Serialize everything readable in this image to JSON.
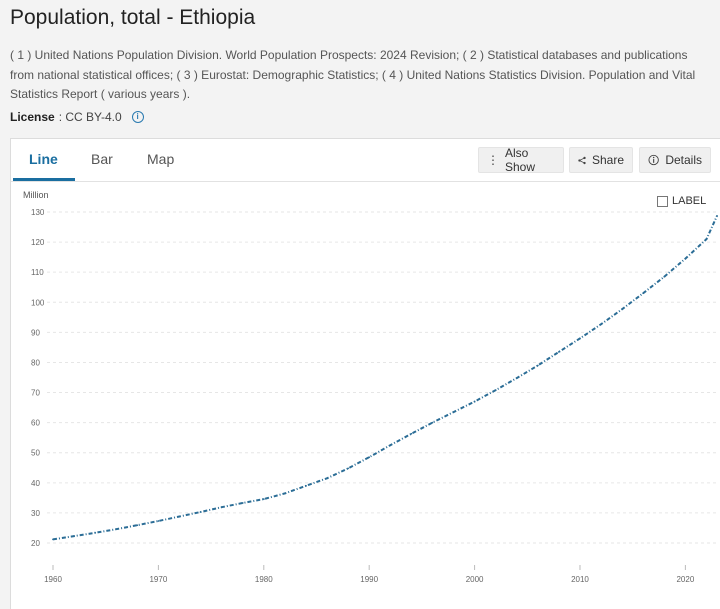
{
  "page": {
    "title": "Population, total - Ethiopia",
    "source": "( 1 ) United Nations Population Division. World Population Prospects: 2024 Revision; ( 2 ) Statistical databases and publications from national statistical offices; ( 3 ) Eurostat: Demographic Statistics; ( 4 ) United Nations Statistics Division. Population and Vital Statistics Report ( various years ).",
    "license_label": "License",
    "license_value": ": CC BY-4.0"
  },
  "tabs": [
    {
      "label": "Line",
      "active": true
    },
    {
      "label": "Bar",
      "active": false
    },
    {
      "label": "Map",
      "active": false
    }
  ],
  "toolbar": {
    "also_show": "Also Show",
    "share": "Share",
    "details": "Details"
  },
  "label_toggle": "LABEL",
  "colors": {
    "accent": "#1a6ea0",
    "line": "#2b6d96",
    "grid": "#e6e6e6"
  },
  "chart_data": {
    "type": "line",
    "unit_label": "Million",
    "x": [
      1960,
      1962,
      1964,
      1966,
      1968,
      1970,
      1972,
      1974,
      1976,
      1978,
      1980,
      1982,
      1984,
      1986,
      1988,
      1990,
      1992,
      1994,
      1996,
      1998,
      2000,
      2002,
      2004,
      2006,
      2008,
      2010,
      2012,
      2014,
      2016,
      2018,
      2020,
      2022,
      2023
    ],
    "series": [
      {
        "values": [
          21.2,
          22.3,
          23.4,
          24.6,
          25.9,
          27.3,
          28.8,
          30.3,
          31.9,
          33.3,
          34.6,
          36.5,
          39.0,
          41.5,
          44.8,
          48.5,
          52.5,
          56.3,
          60.0,
          63.5,
          67.0,
          70.8,
          74.8,
          79.0,
          83.5,
          88.0,
          92.7,
          97.7,
          103.0,
          108.5,
          114.5,
          121.0,
          128.7
        ]
      }
    ],
    "x_ticks": [
      "1960",
      "1970",
      "1980",
      "1990",
      "2000",
      "2010",
      "2020"
    ],
    "y_ticks": [
      "20",
      "30",
      "40",
      "50",
      "60",
      "70",
      "80",
      "90",
      "100",
      "110",
      "120",
      "130"
    ],
    "xlim": [
      1960,
      2023
    ],
    "ylim": [
      20,
      130
    ],
    "grid": true,
    "line_style": "dash-dot"
  }
}
